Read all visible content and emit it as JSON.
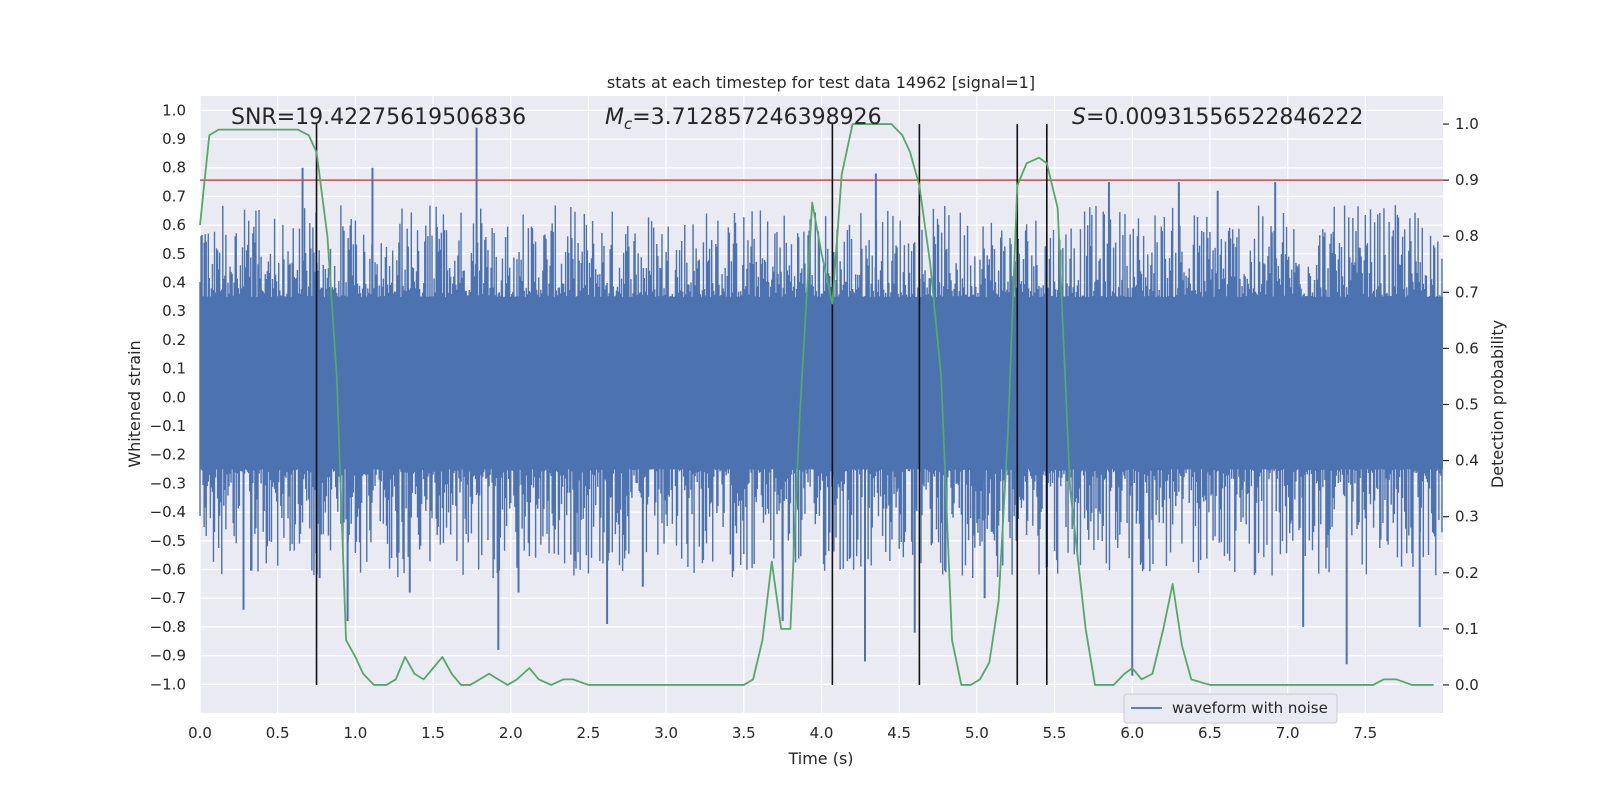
{
  "chart_data": {
    "type": "line",
    "title": "stats at each timestep for test data 14962 [signal=1]",
    "xlabel": "Time (s)",
    "ylabel": "Whitened strain",
    "y2label": "Detection probability",
    "xlim": [
      0.0,
      8.0
    ],
    "ylim": [
      -1.1,
      1.05
    ],
    "y2lim": [
      -0.05,
      1.05
    ],
    "x_ticks": [
      0.0,
      0.5,
      1.0,
      1.5,
      2.0,
      2.5,
      3.0,
      3.5,
      4.0,
      4.5,
      5.0,
      5.5,
      6.0,
      6.5,
      7.0,
      7.5
    ],
    "y_ticks": [
      -1.0,
      -0.9,
      -0.8,
      -0.7,
      -0.6,
      -0.5,
      -0.4,
      -0.3,
      -0.2,
      -0.1,
      0.0,
      0.1,
      0.2,
      0.3,
      0.4,
      0.5,
      0.6,
      0.7,
      0.8,
      0.9,
      1.0
    ],
    "y2_ticks": [
      0.0,
      0.1,
      0.2,
      0.3,
      0.4,
      0.5,
      0.6,
      0.7,
      0.8,
      0.9,
      1.0
    ],
    "annotations": {
      "snr": "SNR=19.42275619506836",
      "mc_prefix": "M",
      "mc_sub": "c",
      "mc_value": "=3.712857246398926",
      "s_prefix": "S",
      "s_value": "=0.00931556522846222"
    },
    "legend": {
      "label": "waveform with noise",
      "position": "lower-right"
    },
    "threshold": {
      "value": 0.9,
      "axis": "y2",
      "color": "#c44e52"
    },
    "vlines": [
      0.75,
      4.07,
      4.63,
      5.26,
      5.45
    ],
    "waveform": {
      "color": "#4c72b0",
      "core_band": [
        -0.25,
        0.35
      ],
      "samples": 1200,
      "peaks": [
        {
          "x": 0.66,
          "y": 0.8
        },
        {
          "x": 0.77,
          "y": -0.63
        },
        {
          "x": 0.95,
          "y": -0.78
        },
        {
          "x": 1.11,
          "y": 0.8
        },
        {
          "x": 1.35,
          "y": -0.68
        },
        {
          "x": 1.78,
          "y": 0.94
        },
        {
          "x": 1.92,
          "y": -0.88
        },
        {
          "x": 2.05,
          "y": -0.68
        },
        {
          "x": 2.62,
          "y": -0.79
        },
        {
          "x": 2.85,
          "y": -0.66
        },
        {
          "x": 3.75,
          "y": -0.78
        },
        {
          "x": 4.28,
          "y": -0.92
        },
        {
          "x": 4.35,
          "y": 0.78
        },
        {
          "x": 4.6,
          "y": -0.82
        },
        {
          "x": 5.05,
          "y": -0.7
        },
        {
          "x": 6.0,
          "y": -0.97
        },
        {
          "x": 6.3,
          "y": 0.75
        },
        {
          "x": 6.55,
          "y": 0.72
        },
        {
          "x": 6.92,
          "y": 0.75
        },
        {
          "x": 7.1,
          "y": -0.8
        },
        {
          "x": 7.38,
          "y": -0.93
        },
        {
          "x": 7.85,
          "y": -0.8
        },
        {
          "x": 0.28,
          "y": -0.74
        },
        {
          "x": 5.85,
          "y": 0.75
        }
      ]
    },
    "series": [
      {
        "name": "detection probability",
        "axis": "y2",
        "color": "#55a868",
        "x": [
          0.0,
          0.06,
          0.12,
          0.25,
          0.4,
          0.55,
          0.63,
          0.7,
          0.75,
          0.82,
          0.88,
          0.94,
          1.0,
          1.05,
          1.12,
          1.2,
          1.26,
          1.32,
          1.38,
          1.44,
          1.5,
          1.56,
          1.62,
          1.68,
          1.74,
          1.8,
          1.86,
          1.92,
          1.98,
          2.04,
          2.12,
          2.18,
          2.26,
          2.34,
          2.4,
          2.5,
          2.6,
          2.7,
          2.8,
          2.9,
          3.0,
          3.2,
          3.4,
          3.5,
          3.56,
          3.62,
          3.68,
          3.74,
          3.8,
          3.86,
          3.94,
          4.0,
          4.07,
          4.13,
          4.2,
          4.3,
          4.45,
          4.52,
          4.57,
          4.63,
          4.7,
          4.77,
          4.84,
          4.9,
          4.96,
          5.02,
          5.08,
          5.14,
          5.2,
          5.26,
          5.32,
          5.4,
          5.45,
          5.52,
          5.6,
          5.7,
          5.76,
          5.8,
          5.88,
          5.95,
          6.0,
          6.06,
          6.13,
          6.2,
          6.26,
          6.32,
          6.38,
          6.5,
          6.7,
          7.0,
          7.3,
          7.55,
          7.62,
          7.7,
          7.8,
          7.86,
          7.94
        ],
        "y": [
          0.82,
          0.98,
          0.99,
          0.99,
          0.99,
          0.99,
          0.99,
          0.98,
          0.95,
          0.8,
          0.55,
          0.08,
          0.05,
          0.02,
          0.0,
          0.0,
          0.01,
          0.05,
          0.02,
          0.01,
          0.03,
          0.05,
          0.02,
          0.0,
          0.0,
          0.01,
          0.02,
          0.01,
          0.0,
          0.01,
          0.03,
          0.01,
          0.0,
          0.01,
          0.01,
          0.0,
          0.0,
          0.0,
          0.0,
          0.0,
          0.0,
          0.0,
          0.0,
          0.0,
          0.01,
          0.08,
          0.22,
          0.1,
          0.1,
          0.48,
          0.86,
          0.77,
          0.68,
          0.91,
          1.0,
          1.0,
          1.0,
          0.98,
          0.95,
          0.89,
          0.75,
          0.55,
          0.08,
          0.0,
          0.0,
          0.01,
          0.04,
          0.15,
          0.45,
          0.89,
          0.93,
          0.94,
          0.93,
          0.85,
          0.35,
          0.1,
          0.0,
          0.0,
          0.0,
          0.02,
          0.03,
          0.01,
          0.02,
          0.1,
          0.18,
          0.07,
          0.01,
          0.0,
          0.0,
          0.0,
          0.0,
          0.0,
          0.01,
          0.01,
          0.0,
          0.0,
          0.0
        ]
      }
    ]
  }
}
